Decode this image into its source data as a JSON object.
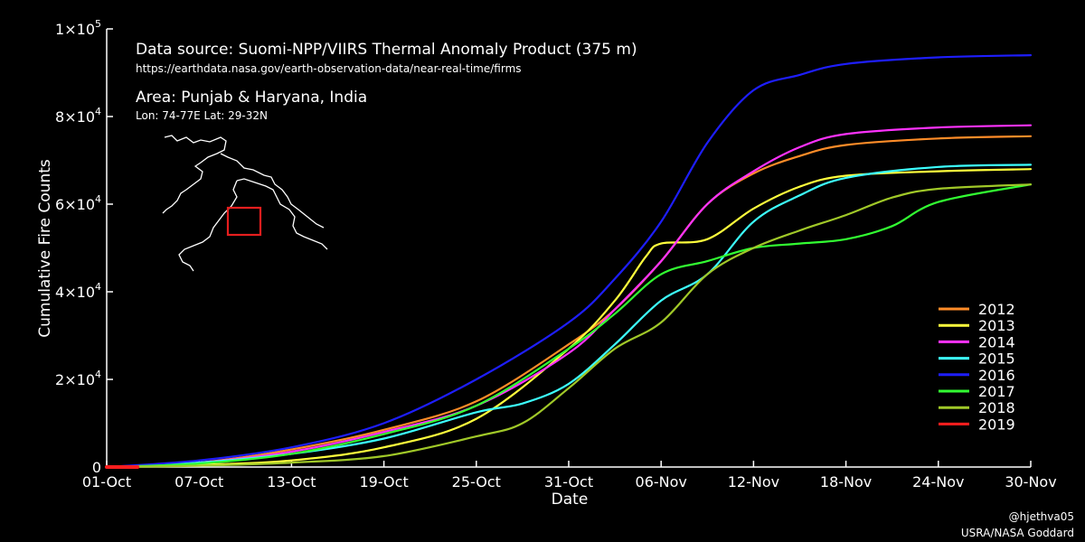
{
  "chart_data": {
    "type": "line",
    "title": "",
    "xlabel": "Date",
    "ylabel": "Cumulative Fire Counts",
    "xlim": [
      1,
      61
    ],
    "ylim": [
      0,
      100000
    ],
    "x_ticks": [
      {
        "x": 1,
        "label": "01-Oct"
      },
      {
        "x": 7,
        "label": "07-Oct"
      },
      {
        "x": 13,
        "label": "13-Oct"
      },
      {
        "x": 19,
        "label": "19-Oct"
      },
      {
        "x": 25,
        "label": "25-Oct"
      },
      {
        "x": 31,
        "label": "31-Oct"
      },
      {
        "x": 37,
        "label": "06-Nov"
      },
      {
        "x": 43,
        "label": "12-Nov"
      },
      {
        "x": 49,
        "label": "18-Nov"
      },
      {
        "x": 55,
        "label": "24-Nov"
      },
      {
        "x": 61,
        "label": "30-Nov"
      }
    ],
    "y_ticks": [
      {
        "y": 0,
        "mantissa": "0",
        "exponent": ""
      },
      {
        "y": 20000,
        "mantissa": "2×10",
        "exponent": "4"
      },
      {
        "y": 40000,
        "mantissa": "4×10",
        "exponent": "4"
      },
      {
        "y": 60000,
        "mantissa": "6×10",
        "exponent": "4"
      },
      {
        "y": 80000,
        "mantissa": "8×10",
        "exponent": "4"
      },
      {
        "y": 100000,
        "mantissa": "1×10",
        "exponent": "5"
      }
    ],
    "legend_position": "bottom-right",
    "annotations": {
      "source_line": "Data source: Suomi-NPP/VIIRS Thermal Anomaly Product (375 m)",
      "url": "https://earthdata.nasa.gov/earth-observation-data/near-real-time/firms",
      "area": "Area: Punjab & Haryana, India",
      "coords": "Lon: 74-77E Lat: 29-32N",
      "credit_handle": "@hjethva05",
      "credit_org": "USRA/NASA Goddard"
    },
    "series": [
      {
        "name": "2012",
        "color": "#ff8c28",
        "points": [
          [
            1,
            0
          ],
          [
            7,
            1000
          ],
          [
            13,
            4000
          ],
          [
            19,
            8500
          ],
          [
            25,
            15000
          ],
          [
            31,
            28000
          ],
          [
            34,
            36000
          ],
          [
            37,
            47000
          ],
          [
            40,
            60000
          ],
          [
            43,
            67000
          ],
          [
            46,
            71000
          ],
          [
            49,
            73500
          ],
          [
            55,
            75000
          ],
          [
            61,
            75500
          ]
        ]
      },
      {
        "name": "2013",
        "color": "#ffff3c",
        "points": [
          [
            1,
            0
          ],
          [
            7,
            500
          ],
          [
            13,
            1500
          ],
          [
            19,
            4500
          ],
          [
            25,
            11000
          ],
          [
            31,
            27000
          ],
          [
            34,
            38000
          ],
          [
            36,
            48000
          ],
          [
            37,
            51000
          ],
          [
            40,
            52000
          ],
          [
            43,
            59000
          ],
          [
            46,
            64000
          ],
          [
            49,
            66500
          ],
          [
            55,
            67500
          ],
          [
            61,
            68000
          ]
        ]
      },
      {
        "name": "2014",
        "color": "#ff32ff",
        "points": [
          [
            1,
            0
          ],
          [
            7,
            1000
          ],
          [
            13,
            3500
          ],
          [
            19,
            8000
          ],
          [
            25,
            14000
          ],
          [
            31,
            26000
          ],
          [
            34,
            36000
          ],
          [
            37,
            47000
          ],
          [
            40,
            60000
          ],
          [
            43,
            67500
          ],
          [
            46,
            73000
          ],
          [
            49,
            76000
          ],
          [
            55,
            77500
          ],
          [
            61,
            78000
          ]
        ]
      },
      {
        "name": "2015",
        "color": "#3cffff",
        "points": [
          [
            1,
            0
          ],
          [
            7,
            1000
          ],
          [
            13,
            3000
          ],
          [
            19,
            6500
          ],
          [
            25,
            12500
          ],
          [
            28,
            14500
          ],
          [
            31,
            19000
          ],
          [
            34,
            28000
          ],
          [
            37,
            38000
          ],
          [
            40,
            44000
          ],
          [
            43,
            56000
          ],
          [
            46,
            62000
          ],
          [
            49,
            66000
          ],
          [
            55,
            68500
          ],
          [
            61,
            69000
          ]
        ]
      },
      {
        "name": "2016",
        "color": "#1e1eff",
        "points": [
          [
            1,
            0
          ],
          [
            7,
            1500
          ],
          [
            13,
            4500
          ],
          [
            19,
            10000
          ],
          [
            25,
            20000
          ],
          [
            31,
            33000
          ],
          [
            34,
            43000
          ],
          [
            37,
            56000
          ],
          [
            40,
            74000
          ],
          [
            43,
            86000
          ],
          [
            46,
            89500
          ],
          [
            49,
            92000
          ],
          [
            55,
            93500
          ],
          [
            61,
            94000
          ]
        ]
      },
      {
        "name": "2017",
        "color": "#32ff32",
        "points": [
          [
            1,
            0
          ],
          [
            7,
            800
          ],
          [
            13,
            3000
          ],
          [
            19,
            7500
          ],
          [
            25,
            14000
          ],
          [
            31,
            27000
          ],
          [
            34,
            35000
          ],
          [
            37,
            44000
          ],
          [
            40,
            47000
          ],
          [
            43,
            50000
          ],
          [
            46,
            51000
          ],
          [
            49,
            52000
          ],
          [
            52,
            55000
          ],
          [
            55,
            60500
          ],
          [
            61,
            64500
          ]
        ]
      },
      {
        "name": "2018",
        "color": "#a0c828",
        "points": [
          [
            1,
            0
          ],
          [
            7,
            300
          ],
          [
            13,
            1000
          ],
          [
            19,
            2500
          ],
          [
            25,
            7000
          ],
          [
            28,
            10000
          ],
          [
            31,
            18000
          ],
          [
            34,
            27000
          ],
          [
            37,
            33000
          ],
          [
            40,
            44000
          ],
          [
            43,
            50000
          ],
          [
            46,
            54000
          ],
          [
            49,
            57500
          ],
          [
            52,
            61500
          ],
          [
            55,
            63500
          ],
          [
            61,
            64500
          ]
        ]
      },
      {
        "name": "2019",
        "color": "#ff1e1e",
        "points": [
          [
            1,
            0
          ],
          [
            2,
            0
          ],
          [
            3,
            0
          ]
        ]
      }
    ]
  }
}
